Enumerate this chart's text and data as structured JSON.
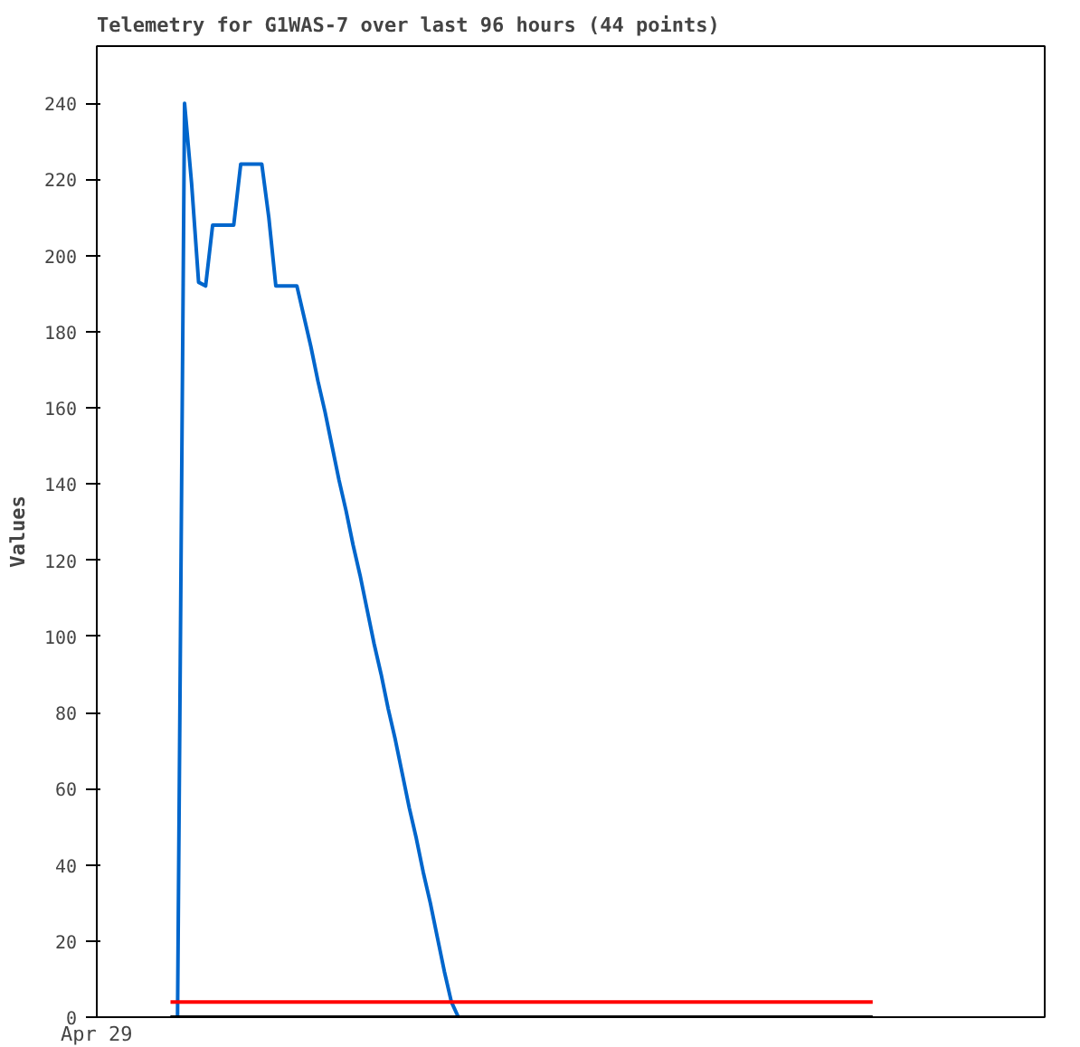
{
  "chart_data": {
    "type": "line",
    "title": "Telemetry for G1WAS-7 over last 96 hours (44 points)",
    "ylabel": "Values",
    "annotations": [
      "Apr 29"
    ],
    "ylim": [
      0,
      255
    ],
    "yticks": [
      0,
      20,
      40,
      60,
      80,
      100,
      120,
      140,
      160,
      180,
      200,
      220,
      240
    ],
    "grid": false,
    "line_style": "solid",
    "marker": "none",
    "categories": [
      null,
      null,
      null,
      null,
      null,
      null,
      null,
      null,
      null,
      null,
      null,
      null,
      null,
      null,
      null,
      null,
      null,
      null,
      null,
      null,
      null,
      null,
      null,
      null,
      null,
      null,
      null,
      null,
      null,
      null,
      null,
      null,
      null,
      null,
      null,
      null,
      null,
      null,
      null,
      null,
      null,
      null,
      null,
      null,
      null,
      null,
      null,
      null,
      null,
      null,
      null,
      null,
      null,
      null,
      null,
      null,
      null,
      null,
      null,
      null,
      null,
      null,
      null,
      null,
      null,
      null,
      null,
      null,
      null,
      null,
      null,
      null,
      null,
      null,
      null,
      null,
      null,
      null,
      null,
      null,
      null,
      null,
      null,
      null,
      null,
      null,
      null,
      null,
      null,
      null,
      null,
      null,
      null,
      null,
      null,
      null,
      null,
      null,
      null,
      null,
      null,
      null,
      null,
      null,
      null,
      null,
      null,
      null,
      null,
      null,
      null,
      null,
      null,
      null,
      null,
      null,
      null,
      null,
      null,
      null,
      null,
      null,
      null,
      null,
      null,
      null,
      null,
      null,
      null,
      null,
      null,
      null,
      null,
      null,
      null
    ],
    "series": [
      {
        "color": "#0066cc",
        "values": [
          null,
          null,
          null,
          null,
          null,
          null,
          null,
          null,
          null,
          null,
          0,
          0,
          240,
          219,
          193,
          192,
          208,
          208,
          208,
          208,
          224,
          224,
          224,
          224,
          210,
          192,
          192,
          192,
          192,
          184,
          176,
          167,
          159,
          150,
          141,
          133,
          124,
          116,
          107,
          98,
          90,
          81,
          73,
          64,
          55,
          47,
          38,
          30,
          21,
          12,
          4,
          0,
          null,
          null,
          null,
          null,
          null,
          null,
          null,
          null,
          null,
          null,
          null,
          null,
          null,
          null,
          null,
          null,
          null,
          null,
          null,
          null,
          null,
          null,
          null,
          null,
          null,
          null,
          null,
          null,
          null,
          null,
          null,
          null,
          null,
          null,
          null,
          null,
          null,
          null,
          null,
          null,
          null,
          null,
          null,
          null,
          null,
          null,
          null,
          null,
          null,
          null,
          null,
          null,
          null,
          null,
          null,
          null,
          null,
          null,
          null,
          null,
          null,
          null,
          null,
          null,
          null,
          null,
          null,
          null,
          null,
          null,
          null,
          null,
          null,
          null,
          null,
          null,
          null,
          null,
          null,
          null,
          null,
          null,
          null
        ]
      },
      {
        "color": "#ff0000",
        "values": [
          null,
          null,
          null,
          null,
          null,
          null,
          null,
          null,
          null,
          null,
          4,
          4,
          4,
          4,
          4,
          4,
          4,
          4,
          4,
          4,
          4,
          4,
          4,
          4,
          4,
          4,
          4,
          4,
          4,
          4,
          4,
          4,
          4,
          4,
          4,
          4,
          4,
          4,
          4,
          4,
          4,
          4,
          4,
          4,
          4,
          4,
          4,
          4,
          4,
          4,
          4,
          4,
          4,
          4,
          4,
          4,
          4,
          4,
          4,
          4,
          4,
          4,
          4,
          4,
          4,
          4,
          4,
          4,
          4,
          4,
          4,
          4,
          4,
          4,
          4,
          4,
          4,
          4,
          4,
          4,
          4,
          4,
          4,
          4,
          4,
          4,
          4,
          4,
          4,
          4,
          4,
          4,
          4,
          4,
          4,
          4,
          4,
          4,
          4,
          4,
          4,
          4,
          4,
          4,
          4,
          4,
          4,
          4,
          4,
          4,
          4,
          null,
          null,
          null,
          null,
          null,
          null,
          null,
          null,
          null,
          null,
          null,
          null,
          null,
          null,
          null,
          null,
          null,
          null,
          null,
          null,
          null,
          null,
          null,
          null
        ]
      },
      {
        "color": "#000000",
        "values": [
          null,
          null,
          null,
          null,
          null,
          null,
          null,
          null,
          null,
          null,
          0,
          0,
          0,
          0,
          0,
          0,
          0,
          0,
          0,
          0,
          0,
          0,
          0,
          0,
          0,
          0,
          0,
          0,
          0,
          0,
          0,
          0,
          0,
          0,
          0,
          0,
          0,
          0,
          0,
          0,
          0,
          0,
          0,
          0,
          0,
          0,
          0,
          0,
          0,
          0,
          0,
          0,
          0,
          0,
          0,
          0,
          0,
          0,
          0,
          0,
          0,
          0,
          0,
          0,
          0,
          0,
          0,
          0,
          0,
          0,
          0,
          0,
          0,
          0,
          0,
          0,
          0,
          0,
          0,
          0,
          0,
          0,
          0,
          0,
          0,
          0,
          0,
          0,
          0,
          0,
          0,
          0,
          0,
          0,
          0,
          0,
          0,
          0,
          0,
          0,
          0,
          0,
          0,
          0,
          0,
          0,
          0,
          0,
          0,
          0,
          0,
          null,
          null,
          null,
          null,
          null,
          null,
          null,
          null,
          null,
          null,
          null,
          null,
          null,
          null,
          null,
          null,
          null,
          null,
          null,
          null,
          null,
          null,
          null,
          null
        ]
      }
    ]
  }
}
